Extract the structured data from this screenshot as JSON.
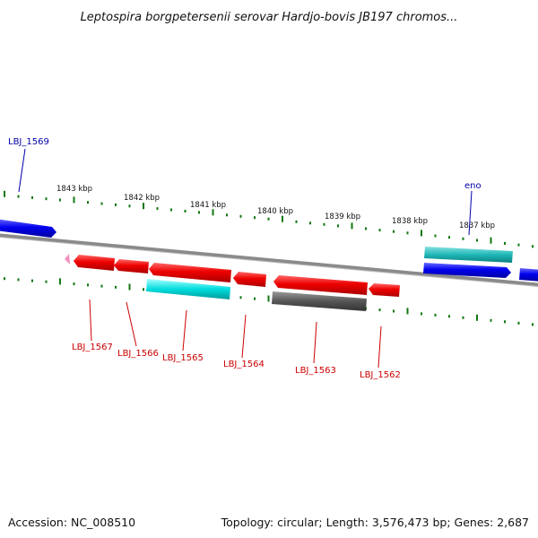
{
  "title": "Leptospira borgpetersenii serovar Hardjo-bovis JB197 chromos...",
  "footer": {
    "accession": "Accession: NC_008510",
    "summary": "Topology: circular; Length: 3,576,473 bp; Genes: 2,687"
  },
  "kbp_labels": [
    "1843 kbp",
    "1842 kbp",
    "1841 kbp",
    "1840 kbp",
    "1839 kbp",
    "1838 kbp",
    "1837 kbp"
  ],
  "gene_labels": [
    {
      "text": "LBJ_1569",
      "color": "#0000aa"
    },
    {
      "text": "eno",
      "color": "#0000aa"
    },
    {
      "text": "LBJ_1567",
      "color": "#cc0000"
    },
    {
      "text": "LBJ_1566",
      "color": "#cc0000"
    },
    {
      "text": "LBJ_1565",
      "color": "#cc0000"
    },
    {
      "text": "LBJ_1564",
      "color": "#cc0000"
    },
    {
      "text": "LBJ_1563",
      "color": "#cc0000"
    },
    {
      "text": "LBJ_1562",
      "color": "#cc0000"
    }
  ],
  "colors": {
    "forward_cds": "#0000ee",
    "reverse_cds": "#ee0000",
    "rna_cyan": "#00cccc",
    "pseudo_gray": "#555555",
    "ruler_tick": "#117711",
    "backbone": "#8a8a8a"
  }
}
